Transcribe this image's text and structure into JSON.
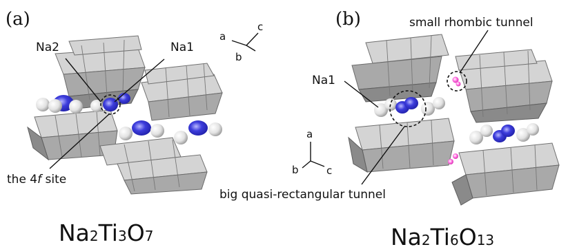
{
  "panel_a": {
    "tag": "(a)",
    "labels": {
      "na2": "Na2",
      "na1": "Na1",
      "site_prefix": "the 4",
      "site_italic": "f",
      "site_suffix": " site"
    },
    "axes": {
      "a": "a",
      "b": "b",
      "c": "c"
    },
    "formula": {
      "p1": "Na",
      "s1": "2",
      "p2": "Ti",
      "s2": "3",
      "p3": "O",
      "s3": "7"
    }
  },
  "panel_b": {
    "tag": "(b)",
    "labels": {
      "na1": "Na1",
      "small_tunnel": "small rhombic tunnel",
      "big_tunnel": "big quasi-rectangular tunnel"
    },
    "axes": {
      "a": "a",
      "b": "b",
      "c": "c"
    },
    "formula": {
      "p1": "Na",
      "s1": "2",
      "p2": "Ti",
      "s2": "6",
      "p3": "O",
      "s3": "13"
    }
  },
  "colors": {
    "octahedra_light": "#d4d4d4",
    "octahedra_dark": "#a9a9a9",
    "na_sphere": "#ececec",
    "na_density": "#3d3ddc",
    "small_tunnel_site": "#ff66dd"
  }
}
